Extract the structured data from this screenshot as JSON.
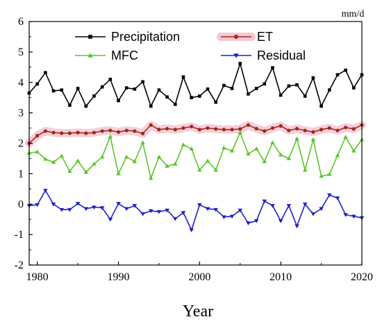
{
  "chart_data": {
    "type": "line",
    "xlabel": "Year",
    "unit_label": "mm/d",
    "xlim": [
      1979,
      2020
    ],
    "ylim": [
      -2,
      6
    ],
    "xticks": [
      1980,
      1990,
      2000,
      2010,
      2020
    ],
    "yticks": [
      -2,
      -1,
      0,
      1,
      2,
      3,
      4,
      5,
      6
    ],
    "x": [
      1979,
      1980,
      1981,
      1982,
      1983,
      1984,
      1985,
      1986,
      1987,
      1988,
      1989,
      1990,
      1991,
      1992,
      1993,
      1994,
      1995,
      1996,
      1997,
      1998,
      1999,
      2000,
      2001,
      2002,
      2003,
      2004,
      2005,
      2006,
      2007,
      2008,
      2009,
      2010,
      2011,
      2012,
      2013,
      2014,
      2015,
      2016,
      2017,
      2018,
      2019,
      2020
    ],
    "legend_position": "upper",
    "series": [
      {
        "name": "Precipitation",
        "color": "#000000",
        "marker": "square",
        "values": [
          3.65,
          3.95,
          4.32,
          3.72,
          3.75,
          3.25,
          3.8,
          3.22,
          3.55,
          3.85,
          4.1,
          3.4,
          3.82,
          3.78,
          4.02,
          3.22,
          3.75,
          3.52,
          3.28,
          4.18,
          3.5,
          3.55,
          3.78,
          3.35,
          3.9,
          3.8,
          4.62,
          3.62,
          3.8,
          3.95,
          4.48,
          3.58,
          3.88,
          3.92,
          3.55,
          4.15,
          3.22,
          3.75,
          4.25,
          4.4,
          3.82,
          4.25
        ]
      },
      {
        "name": "ET",
        "color": "#9b2a1e",
        "marker": "circle",
        "band_color": "#f6c6d4",
        "values": [
          2.0,
          2.25,
          2.4,
          2.35,
          2.33,
          2.33,
          2.35,
          2.33,
          2.35,
          2.4,
          2.42,
          2.37,
          2.42,
          2.4,
          2.32,
          2.6,
          2.45,
          2.48,
          2.45,
          2.5,
          2.55,
          2.45,
          2.5,
          2.47,
          2.45,
          2.45,
          2.47,
          2.6,
          2.48,
          2.4,
          2.5,
          2.57,
          2.42,
          2.48,
          2.42,
          2.37,
          2.45,
          2.5,
          2.42,
          2.52,
          2.47,
          2.6
        ]
      },
      {
        "name": "MFC",
        "color": "#5ac725",
        "marker": "triangle-up",
        "values": [
          1.68,
          1.72,
          1.48,
          1.38,
          1.58,
          1.08,
          1.42,
          1.05,
          1.32,
          1.55,
          2.22,
          1.0,
          1.55,
          1.4,
          2.02,
          0.85,
          1.55,
          1.25,
          1.32,
          1.95,
          1.82,
          1.12,
          1.42,
          1.12,
          1.85,
          1.75,
          2.35,
          1.65,
          1.82,
          1.4,
          2.02,
          1.62,
          1.5,
          2.15,
          1.12,
          2.12,
          0.92,
          0.98,
          1.6,
          2.2,
          1.75,
          2.12
        ]
      },
      {
        "name": "Residual",
        "color": "#1f1fd6",
        "marker": "triangle-down",
        "values": [
          -0.05,
          -0.02,
          0.45,
          0.0,
          -0.18,
          -0.18,
          0.02,
          -0.15,
          -0.1,
          -0.12,
          -0.5,
          0.02,
          -0.15,
          -0.05,
          -0.32,
          -0.22,
          -0.25,
          -0.2,
          -0.48,
          -0.28,
          -0.85,
          -0.02,
          -0.15,
          -0.18,
          -0.42,
          -0.4,
          -0.2,
          -0.62,
          -0.55,
          0.1,
          -0.05,
          -0.55,
          -0.05,
          -0.72,
          0.0,
          -0.32,
          -0.15,
          0.3,
          0.2,
          -0.35,
          -0.4,
          -0.45
        ]
      }
    ]
  }
}
